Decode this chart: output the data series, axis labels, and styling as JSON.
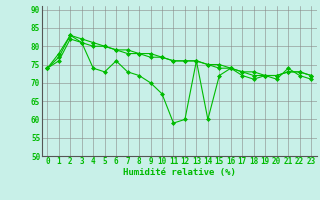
{
  "x": [
    0,
    1,
    2,
    3,
    4,
    5,
    6,
    7,
    8,
    9,
    10,
    11,
    12,
    13,
    14,
    15,
    16,
    17,
    18,
    19,
    20,
    21,
    22,
    23
  ],
  "line1": [
    74,
    77,
    83,
    81,
    74,
    73,
    76,
    73,
    72,
    70,
    67,
    59,
    60,
    76,
    60,
    72,
    74,
    72,
    71,
    72,
    71,
    74,
    72,
    71
  ],
  "line2": [
    74,
    78,
    83,
    82,
    81,
    80,
    79,
    79,
    78,
    78,
    77,
    76,
    76,
    76,
    75,
    75,
    74,
    73,
    73,
    72,
    72,
    73,
    73,
    72
  ],
  "line3": [
    74,
    76,
    82,
    81,
    80,
    80,
    79,
    78,
    78,
    77,
    77,
    76,
    76,
    76,
    75,
    74,
    74,
    73,
    72,
    72,
    72,
    73,
    73,
    72
  ],
  "xlabel": "Humidité relative (%)",
  "ylim": [
    50,
    91
  ],
  "xlim": [
    -0.5,
    23.5
  ],
  "yticks": [
    50,
    55,
    60,
    65,
    70,
    75,
    80,
    85,
    90
  ],
  "xticks": [
    0,
    1,
    2,
    3,
    4,
    5,
    6,
    7,
    8,
    9,
    10,
    11,
    12,
    13,
    14,
    15,
    16,
    17,
    18,
    19,
    20,
    21,
    22,
    23
  ],
  "line_color": "#00bb00",
  "bg_color": "#c8f0e8",
  "grid_color": "#888888",
  "marker": "D",
  "markersize": 2,
  "linewidth": 0.8,
  "tick_fontsize": 5.5,
  "xlabel_fontsize": 6.5
}
